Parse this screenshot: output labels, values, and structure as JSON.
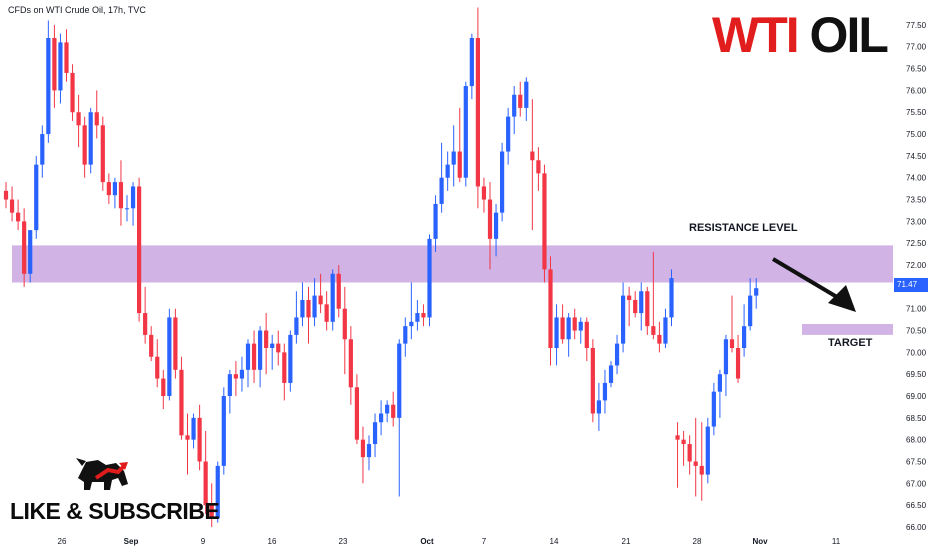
{
  "header": {
    "symbol_line": "CFDs on WTI Crude Oil, 17h, TVC"
  },
  "headline": {
    "word1": "WTI",
    "word2": "OIL"
  },
  "annotations": {
    "resistance_label": "RESISTANCE LEVEL",
    "target_label": "TARGET"
  },
  "footer": {
    "cta": "LIKE & SUBSCRIBE"
  },
  "price_label": "71.47",
  "colors": {
    "up": "#2962ff",
    "down": "#f23645",
    "zone": "#c9a6e0",
    "grid": "#ffffff",
    "axis_text": "#131722"
  },
  "chart_data": {
    "type": "candlestick",
    "title": "",
    "y_axis": {
      "range": [
        66.0,
        77.75
      ],
      "ticks": [
        "66.00",
        "66.50",
        "67.00",
        "67.50",
        "68.00",
        "68.50",
        "69.00",
        "69.50",
        "70.00",
        "70.50",
        "71.00",
        "71.50",
        "72.00",
        "72.50",
        "73.00",
        "73.50",
        "74.00",
        "74.50",
        "75.00",
        "75.50",
        "76.00",
        "76.50",
        "77.00",
        "77.50"
      ]
    },
    "x_axis": {
      "tick_labels": [
        "26",
        "Sep",
        "9",
        "16",
        "23",
        "Oct",
        "7",
        "14",
        "21",
        "28",
        "Nov",
        "11"
      ]
    },
    "zones": [
      {
        "name": "RESISTANCE LEVEL",
        "low": 71.6,
        "high": 72.45
      },
      {
        "name": "TARGET",
        "low": 70.4,
        "high": 70.65
      }
    ],
    "current_price": 71.47,
    "candles": [
      [
        73.7,
        73.9,
        73.3,
        73.5
      ],
      [
        73.5,
        73.8,
        73.0,
        73.2
      ],
      [
        73.2,
        73.5,
        72.8,
        73.0
      ],
      [
        73.0,
        73.3,
        71.5,
        71.8
      ],
      [
        71.8,
        72.8,
        71.6,
        72.8
      ],
      [
        72.8,
        74.5,
        72.6,
        74.3
      ],
      [
        74.3,
        75.2,
        74.0,
        75.0
      ],
      [
        75.0,
        77.6,
        74.8,
        77.2
      ],
      [
        77.2,
        77.5,
        75.6,
        76.0
      ],
      [
        76.0,
        77.3,
        75.7,
        77.1
      ],
      [
        77.1,
        77.4,
        76.2,
        76.4
      ],
      [
        76.4,
        76.6,
        75.3,
        75.5
      ],
      [
        75.5,
        75.9,
        74.7,
        75.2
      ],
      [
        75.2,
        75.4,
        74.0,
        74.3
      ],
      [
        74.3,
        75.6,
        74.1,
        75.5
      ],
      [
        75.5,
        76.0,
        74.9,
        75.2
      ],
      [
        75.2,
        75.4,
        73.7,
        73.9
      ],
      [
        73.9,
        74.1,
        73.4,
        73.6
      ],
      [
        73.6,
        74.0,
        73.3,
        73.9
      ],
      [
        73.9,
        74.4,
        72.9,
        73.3
      ],
      [
        73.3,
        73.6,
        73.0,
        73.3
      ],
      [
        73.3,
        73.9,
        72.9,
        73.8
      ],
      [
        73.8,
        74.0,
        70.7,
        70.9
      ],
      [
        70.9,
        71.5,
        70.2,
        70.4
      ],
      [
        70.4,
        70.6,
        69.8,
        69.9
      ],
      [
        69.9,
        70.3,
        69.2,
        69.4
      ],
      [
        69.4,
        69.6,
        68.7,
        69.0
      ],
      [
        69.0,
        71.0,
        68.9,
        70.8
      ],
      [
        70.8,
        71.0,
        69.4,
        69.6
      ],
      [
        69.6,
        69.9,
        68.0,
        68.1
      ],
      [
        68.1,
        68.6,
        67.2,
        68.0
      ],
      [
        68.0,
        68.6,
        67.8,
        68.5
      ],
      [
        68.5,
        68.8,
        67.3,
        67.5
      ],
      [
        67.5,
        68.2,
        66.3,
        66.5
      ],
      [
        66.5,
        67.0,
        66.0,
        66.2
      ],
      [
        66.2,
        67.5,
        66.1,
        67.4
      ],
      [
        67.4,
        69.2,
        67.2,
        69.0
      ],
      [
        69.0,
        69.6,
        68.6,
        69.5
      ],
      [
        69.5,
        69.8,
        69.0,
        69.4
      ],
      [
        69.4,
        69.9,
        69.1,
        69.6
      ],
      [
        69.6,
        70.3,
        69.2,
        70.2
      ],
      [
        70.2,
        70.5,
        69.3,
        69.6
      ],
      [
        69.6,
        70.6,
        69.2,
        70.5
      ],
      [
        70.5,
        70.9,
        69.5,
        70.1
      ],
      [
        70.1,
        70.4,
        69.6,
        70.2
      ],
      [
        70.2,
        70.5,
        69.7,
        70.0
      ],
      [
        70.0,
        70.2,
        68.9,
        69.3
      ],
      [
        69.3,
        70.5,
        69.1,
        70.4
      ],
      [
        70.4,
        71.4,
        70.2,
        70.8
      ],
      [
        70.8,
        71.6,
        70.6,
        71.2
      ],
      [
        71.2,
        71.5,
        70.2,
        70.8
      ],
      [
        70.8,
        71.7,
        70.6,
        71.3
      ],
      [
        71.3,
        71.8,
        70.9,
        71.1
      ],
      [
        71.1,
        71.4,
        70.5,
        70.7
      ],
      [
        70.7,
        71.9,
        70.5,
        71.8
      ],
      [
        71.8,
        72.0,
        70.8,
        71.0
      ],
      [
        71.0,
        71.5,
        69.5,
        70.3
      ],
      [
        70.3,
        70.6,
        68.8,
        69.2
      ],
      [
        69.2,
        69.5,
        67.9,
        68.0
      ],
      [
        68.0,
        68.3,
        67.0,
        67.6
      ],
      [
        67.6,
        68.1,
        67.3,
        67.9
      ],
      [
        67.9,
        68.6,
        67.6,
        68.4
      ],
      [
        68.4,
        68.9,
        68.1,
        68.6
      ],
      [
        68.6,
        68.9,
        68.4,
        68.8
      ],
      [
        68.8,
        69.1,
        68.3,
        68.5
      ],
      [
        68.5,
        70.3,
        66.7,
        70.2
      ],
      [
        70.2,
        70.8,
        69.9,
        70.6
      ],
      [
        70.6,
        71.6,
        70.3,
        70.7
      ],
      [
        70.7,
        71.2,
        70.5,
        70.9
      ],
      [
        70.9,
        71.1,
        70.6,
        70.8
      ],
      [
        70.8,
        72.7,
        70.6,
        72.6
      ],
      [
        72.6,
        73.6,
        72.3,
        73.4
      ],
      [
        73.4,
        74.8,
        73.2,
        74.0
      ],
      [
        74.0,
        74.6,
        73.7,
        74.3
      ],
      [
        74.3,
        75.2,
        73.8,
        74.6
      ],
      [
        74.6,
        75.6,
        73.9,
        74.0
      ],
      [
        74.0,
        76.2,
        73.8,
        76.1
      ],
      [
        76.1,
        77.3,
        75.8,
        77.2
      ],
      [
        77.2,
        77.9,
        73.3,
        73.8
      ],
      [
        73.8,
        74.0,
        73.2,
        73.5
      ],
      [
        73.5,
        73.9,
        71.9,
        72.6
      ],
      [
        72.6,
        73.4,
        72.2,
        73.2
      ],
      [
        73.2,
        74.8,
        73.0,
        74.6
      ],
      [
        74.6,
        75.6,
        74.3,
        75.4
      ],
      [
        75.4,
        76.1,
        75.0,
        75.9
      ],
      [
        75.9,
        76.2,
        75.4,
        75.6
      ],
      [
        75.6,
        76.3,
        75.3,
        76.2
      ],
      [
        74.6,
        75.8,
        72.8,
        74.4
      ],
      [
        74.4,
        74.7,
        73.7,
        74.1
      ],
      [
        74.1,
        74.3,
        71.6,
        71.9
      ],
      [
        71.9,
        72.2,
        69.7,
        70.1
      ],
      [
        70.1,
        71.1,
        69.7,
        70.8
      ],
      [
        70.8,
        71.1,
        70.2,
        70.3
      ],
      [
        70.3,
        70.9,
        69.9,
        70.8
      ],
      [
        70.8,
        71.0,
        70.3,
        70.5
      ],
      [
        70.5,
        70.8,
        70.2,
        70.7
      ],
      [
        70.7,
        70.8,
        69.8,
        70.1
      ],
      [
        70.1,
        70.3,
        68.4,
        68.6
      ],
      [
        68.6,
        69.3,
        68.2,
        68.9
      ],
      [
        68.9,
        69.6,
        68.6,
        69.3
      ],
      [
        69.3,
        69.8,
        69.2,
        69.7
      ],
      [
        69.7,
        70.4,
        69.5,
        70.2
      ],
      [
        70.2,
        71.6,
        70.0,
        71.3
      ],
      [
        71.3,
        71.5,
        70.6,
        71.2
      ],
      [
        71.2,
        71.4,
        70.8,
        70.9
      ],
      [
        70.9,
        71.6,
        70.5,
        71.4
      ],
      [
        71.4,
        71.5,
        70.4,
        70.6
      ],
      [
        70.6,
        72.3,
        70.3,
        70.4
      ],
      [
        70.4,
        70.7,
        70.0,
        70.2
      ],
      [
        70.2,
        71.0,
        70.1,
        70.8
      ],
      [
        70.8,
        71.9,
        70.6,
        71.7
      ],
      [
        68.1,
        68.4,
        66.9,
        68.0
      ],
      [
        68.0,
        68.2,
        67.4,
        67.9
      ],
      [
        67.9,
        68.1,
        67.2,
        67.5
      ],
      [
        67.5,
        68.5,
        66.7,
        67.4
      ],
      [
        67.4,
        68.4,
        66.6,
        67.2
      ],
      [
        67.2,
        68.5,
        67.0,
        68.3
      ],
      [
        68.3,
        69.3,
        68.1,
        69.1
      ],
      [
        69.1,
        69.6,
        68.5,
        69.5
      ],
      [
        69.5,
        70.4,
        69.0,
        70.3
      ],
      [
        70.3,
        71.3,
        70.0,
        70.1
      ],
      [
        70.1,
        70.4,
        69.3,
        69.4
      ],
      [
        70.1,
        71.1,
        69.9,
        70.6
      ],
      [
        70.6,
        71.7,
        70.5,
        71.3
      ],
      [
        71.3,
        71.7,
        71.0,
        71.47
      ]
    ]
  }
}
